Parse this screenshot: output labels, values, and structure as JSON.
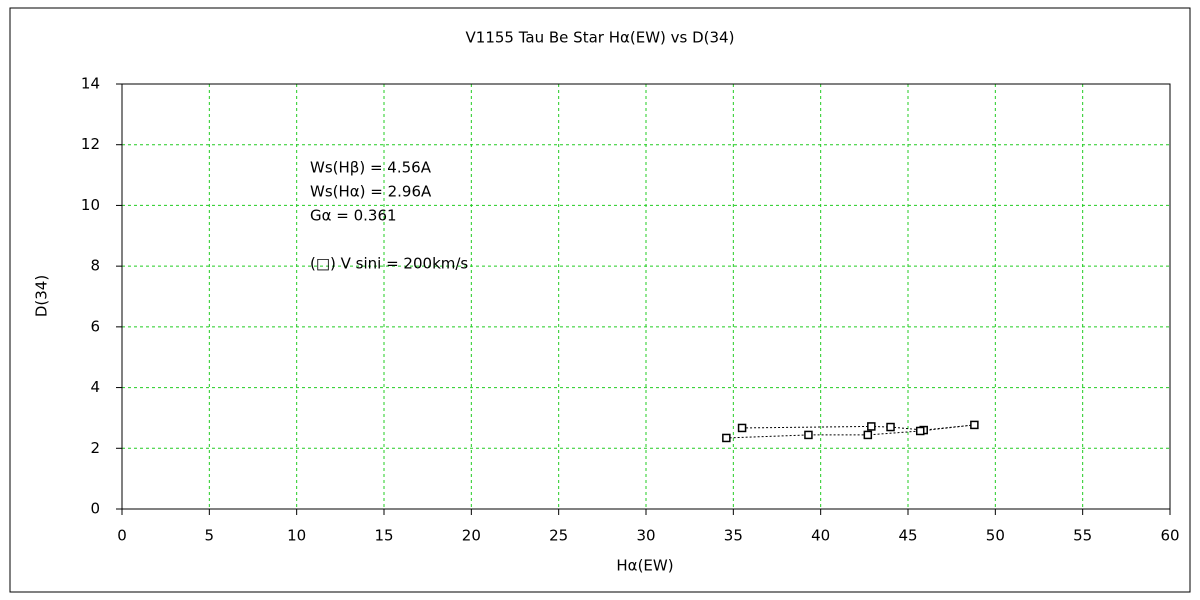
{
  "chart_data": {
    "type": "scatter",
    "title": "V1155 Tau   Be Star   Hα(EW) vs D(34)",
    "x_label": "Hα(EW)",
    "y_label": "D(34)",
    "annotations": [
      "Ws(Hβ) = 4.56A",
      "Ws(Hα) = 2.96A",
      "Gα = 0.361",
      "(□) V sini = 200km/s"
    ],
    "x": [
      35.5,
      42.9,
      44.0,
      45.9,
      48.8,
      45.7,
      42.7,
      39.3,
      34.6
    ],
    "values": [
      2.67,
      2.72,
      2.7,
      2.6,
      2.77,
      2.57,
      2.44,
      2.44,
      2.34
    ],
    "color": "#000000",
    "line_style": "dotted",
    "xlim": [
      0,
      60
    ],
    "xticks": [
      0,
      5,
      10,
      15,
      20,
      25,
      30,
      35,
      40,
      45,
      50,
      55,
      60
    ],
    "ylim": [
      0,
      14
    ],
    "yticks": [
      0,
      2,
      4,
      6,
      8,
      10,
      12,
      14
    ],
    "grid": true
  }
}
